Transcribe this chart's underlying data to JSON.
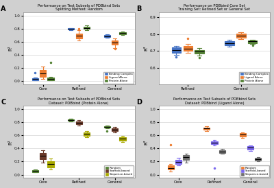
{
  "panel_A": {
    "title": "Performance on Test Subsets of PDBbind Sets\nSplitting Method: Random",
    "ylabel": "R²",
    "xlabel_cats": [
      "Core",
      "Refined",
      "General"
    ],
    "ylim": [
      -0.05,
      1.05
    ],
    "yticks": [
      0.0,
      0.2,
      0.4,
      0.6,
      0.8,
      1.0
    ],
    "series": {
      "Binding Complex": {
        "color": "#4472C4",
        "data": {
          "Core": {
            "q1": 0.01,
            "med": 0.03,
            "q3": 0.04,
            "wlo": 0.01,
            "whi": 0.05
          },
          "Refined": {
            "q1": 0.785,
            "med": 0.795,
            "q3": 0.805,
            "wlo": 0.775,
            "whi": 0.815
          },
          "General": {
            "q1": 0.675,
            "med": 0.685,
            "q3": 0.7,
            "wlo": 0.665,
            "whi": 0.715
          }
        },
        "fliers": {
          "Core": [
            0.13
          ],
          "Refined": [],
          "General": []
        }
      },
      "Ligand Alone": {
        "color": "#ED7D31",
        "data": {
          "Core": {
            "q1": 0.06,
            "med": 0.12,
            "q3": 0.17,
            "wlo": 0.03,
            "whi": 0.22
          },
          "Refined": {
            "q1": 0.655,
            "med": 0.69,
            "q3": 0.73,
            "wlo": 0.62,
            "whi": 0.78
          },
          "General": {
            "q1": 0.555,
            "med": 0.59,
            "q3": 0.625,
            "wlo": 0.51,
            "whi": 0.65
          }
        },
        "fliers": {
          "Core": [],
          "Refined": [
            0.8
          ],
          "General": [
            0.5
          ]
        }
      },
      "Protein Alone": {
        "color": "#548235",
        "data": {
          "Core": {
            "q1": 0.01,
            "med": 0.03,
            "q3": 0.05,
            "wlo": 0.01,
            "whi": 0.07
          },
          "Refined": {
            "q1": 0.795,
            "med": 0.815,
            "q3": 0.835,
            "wlo": 0.78,
            "whi": 0.855
          },
          "General": {
            "q1": 0.715,
            "med": 0.735,
            "q3": 0.75,
            "wlo": 0.7,
            "whi": 0.76
          }
        },
        "fliers": {
          "Core": [
            0.29
          ],
          "Refined": [],
          "General": []
        }
      }
    }
  },
  "panel_B": {
    "title": "Performance on PDBbind Core Set\nTraining Set: Refined Set or General Set",
    "ylabel": "R²",
    "xlabel_cats": [
      "Refined",
      "General"
    ],
    "ylim": [
      0.5,
      0.93
    ],
    "yticks": [
      0.6,
      0.7,
      0.8,
      0.9
    ],
    "series": {
      "Binding Complex": {
        "color": "#4472C4",
        "data": {
          "Refined": {
            "q1": 0.69,
            "med": 0.705,
            "q3": 0.72,
            "wlo": 0.675,
            "whi": 0.73
          },
          "General": {
            "q1": 0.735,
            "med": 0.748,
            "q3": 0.758,
            "wlo": 0.725,
            "whi": 0.765
          }
        },
        "fliers": {
          "Refined": [
            0.665
          ],
          "General": []
        }
      },
      "Ligand Alone": {
        "color": "#ED7D31",
        "data": {
          "Refined": {
            "q1": 0.7,
            "med": 0.715,
            "q3": 0.728,
            "wlo": 0.69,
            "whi": 0.74
          },
          "General": {
            "q1": 0.78,
            "med": 0.792,
            "q3": 0.805,
            "wlo": 0.772,
            "whi": 0.812
          }
        },
        "fliers": {
          "Refined": [
            0.775
          ],
          "General": []
        }
      },
      "Protein Alone": {
        "color": "#548235",
        "data": {
          "Refined": {
            "q1": 0.685,
            "med": 0.695,
            "q3": 0.707,
            "wlo": 0.672,
            "whi": 0.718
          },
          "General": {
            "q1": 0.748,
            "med": 0.758,
            "q3": 0.763,
            "wlo": 0.74,
            "whi": 0.768
          }
        },
        "fliers": {
          "Refined": [
            0.66
          ],
          "General": [
            0.735
          ]
        }
      }
    }
  },
  "panel_C": {
    "title": "Performance on Test Subsets of PDBbind Sets\nDataset: PDBbind (Protein Alone)",
    "ylabel": "R²",
    "xlabel_cats": [
      "Core",
      "Refined",
      "General"
    ],
    "ylim": [
      -0.05,
      1.05
    ],
    "yticks": [
      0.0,
      0.2,
      0.4,
      0.6,
      0.8,
      1.0
    ],
    "series": {
      "Random": {
        "color": "#548235",
        "data": {
          "Core": {
            "q1": 0.04,
            "med": 0.055,
            "q3": 0.065,
            "wlo": 0.032,
            "whi": 0.075
          },
          "Refined": {
            "q1": 0.82,
            "med": 0.835,
            "q3": 0.845,
            "wlo": 0.81,
            "whi": 0.855
          },
          "General": {
            "q1": 0.715,
            "med": 0.73,
            "q3": 0.742,
            "wlo": 0.705,
            "whi": 0.75
          }
        },
        "fliers": {
          "Core": [],
          "Refined": [],
          "General": [
            0.67
          ]
        }
      },
      "Scaffold-based": {
        "color": "#6B3A2A",
        "data": {
          "Core": {
            "q1": 0.235,
            "med": 0.285,
            "q3": 0.33,
            "wlo": 0.185,
            "whi": 0.375
          },
          "Refined": {
            "q1": 0.77,
            "med": 0.795,
            "q3": 0.815,
            "wlo": 0.755,
            "whi": 0.835
          },
          "General": {
            "q1": 0.665,
            "med": 0.69,
            "q3": 0.71,
            "wlo": 0.65,
            "whi": 0.725
          }
        },
        "fliers": {
          "Core": [],
          "Refined": [],
          "General": []
        }
      },
      "Sequence-based": {
        "color": "#AAAA00",
        "data": {
          "Core": {
            "q1": 0.115,
            "med": 0.16,
            "q3": 0.205,
            "wlo": 0.075,
            "whi": 0.245
          },
          "Refined": {
            "q1": 0.59,
            "med": 0.62,
            "q3": 0.645,
            "wlo": 0.57,
            "whi": 0.665
          },
          "General": {
            "q1": 0.52,
            "med": 0.55,
            "q3": 0.57,
            "wlo": 0.5,
            "whi": 0.59
          }
        },
        "fliers": {
          "Core": [],
          "Refined": [],
          "General": []
        }
      }
    }
  },
  "panel_D": {
    "title": "Performance on Test Subsets of PDBbind Sets\nDataset: PDBbind (Ligand Alone)",
    "ylabel": "R²",
    "xlabel_cats": [
      "Core",
      "Refined",
      "General"
    ],
    "ylim": [
      -0.05,
      1.05
    ],
    "yticks": [
      0.0,
      0.2,
      0.4,
      0.6,
      0.8,
      1.0
    ],
    "series": {
      "Random": {
        "color": "#ED7D31",
        "data": {
          "Core": {
            "q1": 0.075,
            "med": 0.105,
            "q3": 0.14,
            "wlo": 0.045,
            "whi": 0.165
          },
          "Refined": {
            "q1": 0.685,
            "med": 0.705,
            "q3": 0.72,
            "wlo": 0.67,
            "whi": 0.735
          },
          "General": {
            "q1": 0.58,
            "med": 0.61,
            "q3": 0.63,
            "wlo": 0.565,
            "whi": 0.645
          }
        },
        "fliers": {
          "Core": [
            0.46
          ],
          "Refined": [],
          "General": []
        }
      },
      "Scaffold-based": {
        "color": "#7B68EE",
        "data": {
          "Core": {
            "q1": 0.165,
            "med": 0.195,
            "q3": 0.225,
            "wlo": 0.14,
            "whi": 0.255
          },
          "Refined": {
            "q1": 0.465,
            "med": 0.49,
            "q3": 0.51,
            "wlo": 0.45,
            "whi": 0.525
          },
          "General": {
            "q1": 0.38,
            "med": 0.41,
            "q3": 0.435,
            "wlo": 0.365,
            "whi": 0.45
          }
        },
        "fliers": {
          "Core": [],
          "Refined": [
            0.095
          ],
          "General": []
        }
      },
      "Sequence-based": {
        "color": "#707070",
        "data": {
          "Core": {
            "q1": 0.225,
            "med": 0.27,
            "q3": 0.295,
            "wlo": 0.185,
            "whi": 0.32
          },
          "Refined": {
            "q1": 0.33,
            "med": 0.355,
            "q3": 0.375,
            "wlo": 0.315,
            "whi": 0.39
          },
          "General": {
            "q1": 0.215,
            "med": 0.235,
            "q3": 0.255,
            "wlo": 0.2,
            "whi": 0.27
          }
        },
        "fliers": {
          "Core": [],
          "Refined": [],
          "General": []
        }
      }
    }
  },
  "bg_color": "#D0D0D0",
  "panel_bg": "#FFFFFF",
  "panel_labels": [
    "A",
    "B",
    "C",
    "D"
  ]
}
